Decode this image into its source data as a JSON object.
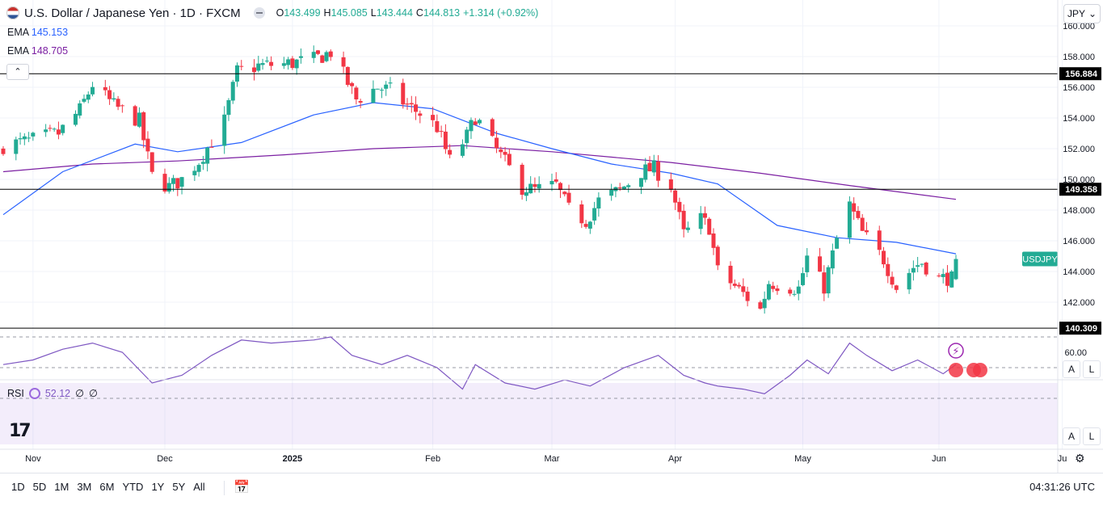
{
  "header": {
    "title": "U.S. Dollar / Japanese Yen · 1D · FXCM",
    "open_label": "O",
    "open": "143.499",
    "high_label": "H",
    "high": "145.085",
    "low_label": "L",
    "low": "143.444",
    "close_label": "C",
    "close": "144.813",
    "change": "+1.314 (+0.92%)"
  },
  "ema1": {
    "label": "EMA",
    "value": "145.153"
  },
  "ema2": {
    "label": "EMA",
    "value": "148.705"
  },
  "rsi": {
    "label": "RSI",
    "value": "52.12",
    "extra1": "∅",
    "extra2": "∅"
  },
  "currency": "JPY",
  "symbol_tag": "USDJPY",
  "scale_buttons": {
    "auto": "A",
    "log": "L"
  },
  "ranges": [
    "1D",
    "5D",
    "1M",
    "3M",
    "6M",
    "YTD",
    "1Y",
    "5Y",
    "All"
  ],
  "clock": "04:31:26 UTC",
  "colors": {
    "up": "#22ab94",
    "down": "#f23645",
    "ema1": "#2962ff",
    "ema2": "#7b1fa2",
    "rsi": "#7e57c2"
  },
  "chart_data": {
    "type": "candlestick",
    "y_ticks": [
      "146.000",
      "144.000",
      "142.000"
    ],
    "ylim": [
      139.5,
      161.0
    ],
    "x_ticks": [
      {
        "label": "Nov",
        "date": "2024-11-01"
      },
      {
        "label": "Dec",
        "date": "2024-12-02"
      },
      {
        "label": "2025",
        "date": "2025-01-01"
      },
      {
        "label": "Feb",
        "date": "2025-02-03"
      },
      {
        "label": "Mar",
        "date": "2025-03-03"
      },
      {
        "label": "Apr",
        "date": "2025-04-01"
      },
      {
        "label": "May",
        "date": "2025-05-01"
      },
      {
        "label": "Jun",
        "date": "2025-06-02"
      },
      {
        "label": "Ju",
        "date": "2025-07-01"
      }
    ],
    "horizontal_levels": [
      156.884,
      149.358,
      140.309
    ],
    "horizontal_level_labels": [
      "156.884",
      "149.358",
      "140.309"
    ],
    "price_path": [
      [
        "2024-10-25",
        152.2
      ],
      [
        "2024-10-31",
        152.5
      ],
      [
        "2024-11-07",
        153.0
      ],
      [
        "2024-11-12",
        154.5
      ],
      [
        "2024-11-15",
        156.2
      ],
      [
        "2024-11-20",
        154.8
      ],
      [
        "2024-11-26",
        153.8
      ],
      [
        "2024-11-29",
        150.2
      ],
      [
        "2024-12-03",
        149.5
      ],
      [
        "2024-12-06",
        150.0
      ],
      [
        "2024-12-10",
        151.2
      ],
      [
        "2024-12-16",
        153.8
      ],
      [
        "2024-12-19",
        157.0
      ],
      [
        "2024-12-24",
        157.4
      ],
      [
        "2024-12-30",
        157.5
      ],
      [
        "2025-01-06",
        157.8
      ],
      [
        "2025-01-10",
        158.3
      ],
      [
        "2025-01-13",
        156.8
      ],
      [
        "2025-01-16",
        155.2
      ],
      [
        "2025-01-21",
        156.0
      ],
      [
        "2025-01-24",
        155.8
      ],
      [
        "2025-01-28",
        154.8
      ],
      [
        "2025-01-31",
        154.3
      ],
      [
        "2025-02-04",
        153.4
      ],
      [
        "2025-02-07",
        151.2
      ],
      [
        "2025-02-11",
        152.8
      ],
      [
        "2025-02-13",
        154.1
      ],
      [
        "2025-02-18",
        151.9
      ],
      [
        "2025-02-24",
        149.5
      ],
      [
        "2025-02-27",
        149.3
      ],
      [
        "2025-03-04",
        149.6
      ],
      [
        "2025-03-07",
        148.0
      ],
      [
        "2025-03-11",
        147.3
      ],
      [
        "2025-03-14",
        148.6
      ],
      [
        "2025-03-19",
        149.3
      ],
      [
        "2025-03-24",
        150.5
      ],
      [
        "2025-03-27",
        150.7
      ],
      [
        "2025-03-31",
        149.6
      ],
      [
        "2025-04-03",
        146.4
      ],
      [
        "2025-04-07",
        147.4
      ],
      [
        "2025-04-09",
        146.9
      ],
      [
        "2025-04-11",
        144.0
      ],
      [
        "2025-04-16",
        142.8
      ],
      [
        "2025-04-21",
        141.5
      ],
      [
        "2025-04-23",
        143.3
      ],
      [
        "2025-04-28",
        143.0
      ],
      [
        "2025-04-30",
        142.9
      ],
      [
        "2025-05-02",
        144.9
      ],
      [
        "2025-05-06",
        143.0
      ],
      [
        "2025-05-09",
        146.1
      ],
      [
        "2025-05-12",
        148.3
      ],
      [
        "2025-05-15",
        146.5
      ],
      [
        "2025-05-20",
        144.8
      ],
      [
        "2025-05-23",
        143.0
      ],
      [
        "2025-05-27",
        144.3
      ],
      [
        "2025-05-29",
        144.6
      ],
      [
        "2025-06-02",
        143.5
      ],
      [
        "2025-06-04",
        143.6
      ],
      [
        "2025-06-05",
        143.5
      ],
      [
        "2025-06-06",
        144.8
      ]
    ],
    "ema1_path": [
      [
        "2024-10-25",
        147.7
      ],
      [
        "2024-11-08",
        150.5
      ],
      [
        "2024-11-25",
        152.3
      ],
      [
        "2024-12-05",
        151.8
      ],
      [
        "2024-12-20",
        152.4
      ],
      [
        "2025-01-06",
        154.2
      ],
      [
        "2025-01-20",
        155.0
      ],
      [
        "2025-02-03",
        154.6
      ],
      [
        "2025-02-18",
        153.0
      ],
      [
        "2025-03-03",
        152.0
      ],
      [
        "2025-03-17",
        151.0
      ],
      [
        "2025-03-31",
        150.4
      ],
      [
        "2025-04-11",
        149.7
      ],
      [
        "2025-04-25",
        147.0
      ],
      [
        "2025-05-09",
        146.2
      ],
      [
        "2025-05-23",
        145.9
      ],
      [
        "2025-06-06",
        145.15
      ]
    ],
    "ema2_path": [
      [
        "2024-10-25",
        150.5
      ],
      [
        "2024-11-15",
        151.0
      ],
      [
        "2024-12-05",
        151.2
      ],
      [
        "2024-12-30",
        151.6
      ],
      [
        "2025-01-20",
        152.0
      ],
      [
        "2025-02-10",
        152.2
      ],
      [
        "2025-03-03",
        151.8
      ],
      [
        "2025-03-31",
        151.1
      ],
      [
        "2025-04-21",
        150.4
      ],
      [
        "2025-05-12",
        149.6
      ],
      [
        "2025-06-06",
        148.7
      ]
    ],
    "rsi_levels": [
      70,
      50,
      30
    ],
    "rsi_ticks": [
      "60.00"
    ],
    "rsi_path": [
      [
        "2024-10-25",
        52
      ],
      [
        "2024-11-01",
        55
      ],
      [
        "2024-11-08",
        62
      ],
      [
        "2024-11-15",
        66
      ],
      [
        "2024-11-22",
        60
      ],
      [
        "2024-11-29",
        40
      ],
      [
        "2024-12-06",
        45
      ],
      [
        "2024-12-13",
        58
      ],
      [
        "2024-12-20",
        68
      ],
      [
        "2024-12-27",
        66
      ],
      [
        "2025-01-06",
        68
      ],
      [
        "2025-01-10",
        70
      ],
      [
        "2025-01-15",
        58
      ],
      [
        "2025-01-22",
        52
      ],
      [
        "2025-01-28",
        58
      ],
      [
        "2025-02-04",
        50
      ],
      [
        "2025-02-10",
        36
      ],
      [
        "2025-02-13",
        52
      ],
      [
        "2025-02-20",
        40
      ],
      [
        "2025-02-27",
        36
      ],
      [
        "2025-03-06",
        42
      ],
      [
        "2025-03-12",
        38
      ],
      [
        "2025-03-20",
        50
      ],
      [
        "2025-03-28",
        58
      ],
      [
        "2025-04-03",
        45
      ],
      [
        "2025-04-08",
        40
      ],
      [
        "2025-04-11",
        38
      ],
      [
        "2025-04-17",
        36
      ],
      [
        "2025-04-22",
        33
      ],
      [
        "2025-04-28",
        45
      ],
      [
        "2025-05-02",
        55
      ],
      [
        "2025-05-07",
        46
      ],
      [
        "2025-05-12",
        66
      ],
      [
        "2025-05-16",
        58
      ],
      [
        "2025-05-22",
        48
      ],
      [
        "2025-05-28",
        55
      ],
      [
        "2025-06-03",
        46
      ],
      [
        "2025-06-06",
        52.12
      ]
    ]
  }
}
